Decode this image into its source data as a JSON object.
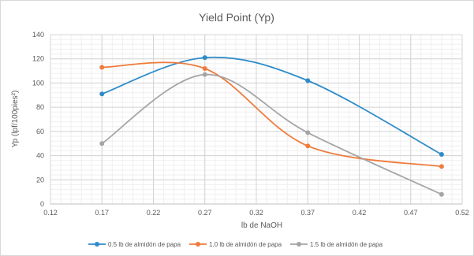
{
  "chart_data": {
    "type": "line",
    "title": "Yield Point (Yp)",
    "xlabel": "lb de NaOH",
    "ylabel": "Yp (lpf/100pies²)",
    "xlim": [
      0.12,
      0.52
    ],
    "ylim": [
      0,
      140
    ],
    "x_ticks": [
      "0.12",
      "0.17",
      "0.22",
      "0.27",
      "0.32",
      "0.37",
      "0.42",
      "0.47",
      "0.52"
    ],
    "y_ticks": [
      "0",
      "20",
      "40",
      "60",
      "80",
      "100",
      "120",
      "140"
    ],
    "grid": true,
    "legend_position": "bottom",
    "series": [
      {
        "name": "0.5 lb de almidón de papa",
        "color": "#2e8bc9",
        "x": [
          0.17,
          0.27,
          0.37,
          0.5
        ],
        "y": [
          91,
          121,
          102,
          41
        ]
      },
      {
        "name": "1.0 lb de almidón de papa",
        "color": "#ef7b3c",
        "x": [
          0.17,
          0.27,
          0.37,
          0.5
        ],
        "y": [
          113,
          112,
          48,
          31
        ]
      },
      {
        "name": "1.5 lb de almidón de papa",
        "color": "#a5a5a5",
        "x": [
          0.17,
          0.27,
          0.37,
          0.5
        ],
        "y": [
          50,
          107,
          59,
          8
        ]
      }
    ]
  }
}
